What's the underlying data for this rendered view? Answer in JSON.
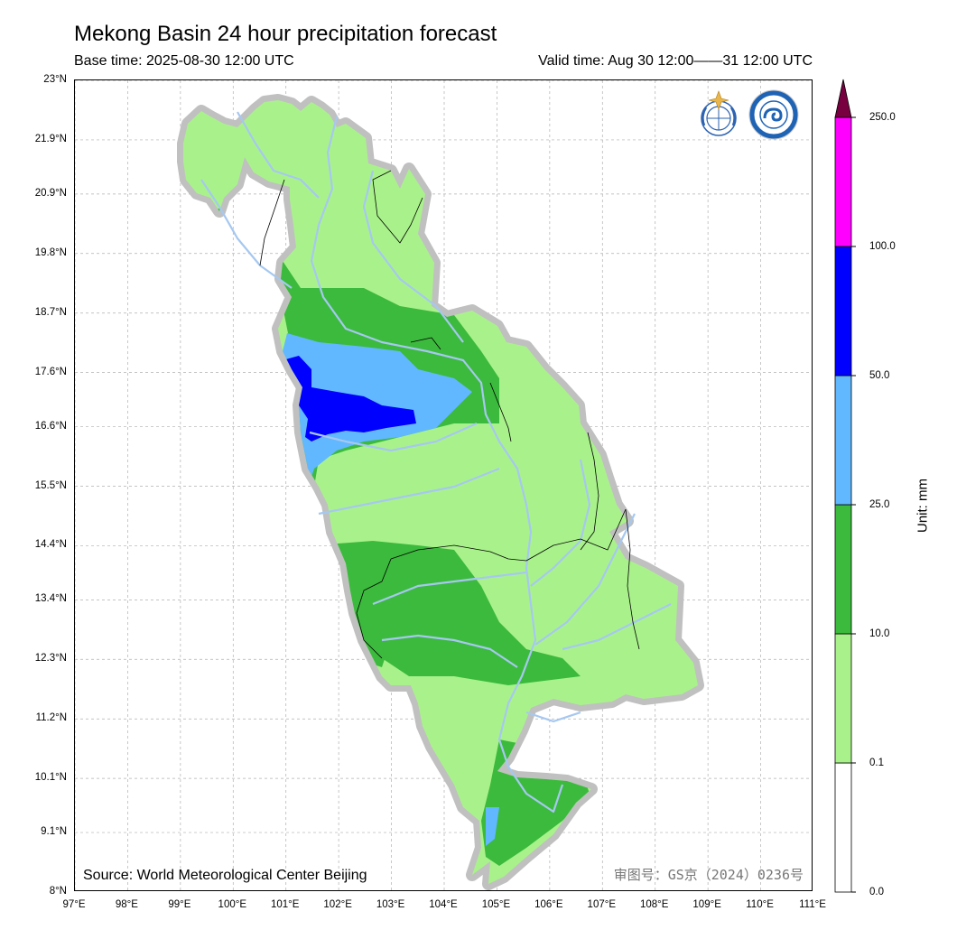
{
  "header": {
    "title": "Mekong Basin 24 hour precipitation forecast",
    "base_time": "Base time: 2025-08-30 12:00 UTC",
    "valid_time": "Valid time: Aug 30 12:00——31 12:00 UTC"
  },
  "map": {
    "source": "Source: World Meteorological Center Beijing",
    "review_number": "审图号：GS京（2024）0236号",
    "logos": [
      "wmo-logo",
      "cma-logo"
    ],
    "lat_ticks": [
      "23°N",
      "21.9°N",
      "20.9°N",
      "19.8°N",
      "18.7°N",
      "17.6°N",
      "16.6°N",
      "15.5°N",
      "14.4°N",
      "13.4°N",
      "12.3°N",
      "11.2°N",
      "10.1°N",
      "9.1°N",
      "8°N"
    ],
    "lon_ticks": [
      "97°E",
      "98°E",
      "99°E",
      "100°E",
      "101°E",
      "102°E",
      "103°E",
      "104°E",
      "105°E",
      "106°E",
      "107°E",
      "108°E",
      "109°E",
      "110°E",
      "111°E"
    ],
    "lat_values": [
      23,
      21.9,
      20.9,
      19.8,
      18.7,
      17.6,
      16.6,
      15.5,
      14.4,
      13.4,
      12.3,
      11.2,
      10.1,
      9.1,
      8
    ],
    "lon_values": [
      97,
      98,
      99,
      100,
      101,
      102,
      103,
      104,
      105,
      106,
      107,
      108,
      109,
      110,
      111
    ],
    "extent": {
      "lon": [
        97,
        111
      ],
      "lat": [
        8,
        23
      ]
    }
  },
  "colorbar": {
    "unit": "Unit: mm",
    "levels": [
      "0.0",
      "0.1",
      "10.0",
      "25.0",
      "50.0",
      "100.0",
      "250.0"
    ],
    "colors": [
      "#ffffff",
      "#a9f28b",
      "#3cba3d",
      "#61b8ff",
      "#0000fe",
      "#ff00ff",
      "#780040"
    ],
    "extend": "max"
  },
  "colors": {
    "basin_halo": "#c0c0c0",
    "rivers": "#a6c8f0",
    "borders": "#000000",
    "grid": "#b0b0b0"
  }
}
